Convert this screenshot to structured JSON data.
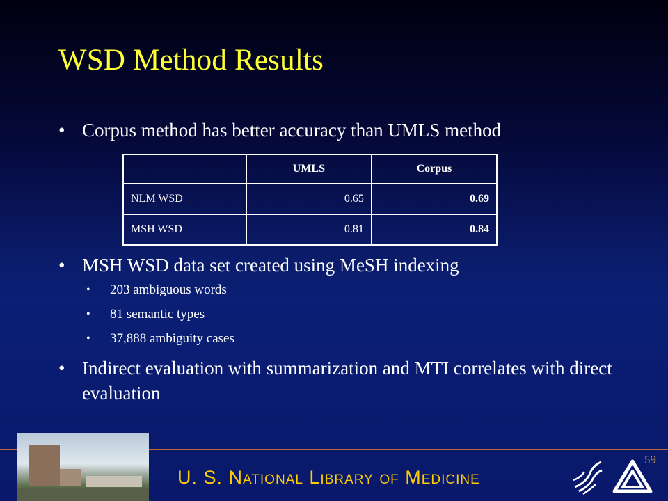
{
  "slide": {
    "title": "WSD Method Results",
    "page_number": "59"
  },
  "bullets": [
    {
      "marker": "•",
      "text": "Corpus method has better accuracy than UMLS method"
    },
    {
      "marker": "•",
      "text": "MSH WSD data set created using MeSH indexing"
    },
    {
      "marker": "•",
      "text": "Indirect evaluation with summarization and MTI correlates with direct evaluation"
    }
  ],
  "sub_bullets": [
    {
      "marker": "•",
      "text": "203 ambiguous words"
    },
    {
      "marker": "•",
      "text": "81 semantic types"
    },
    {
      "marker": "•",
      "text": "37,888 ambiguity cases"
    }
  ],
  "table": {
    "headers": [
      "",
      "UMLS",
      "Corpus"
    ],
    "rows": [
      [
        "NLM WSD",
        "0.65",
        "0.69"
      ],
      [
        "MSH WSD",
        "0.81",
        "0.84"
      ]
    ]
  },
  "footer": {
    "org_name": "U. S. National Library of Medicine",
    "colors": {
      "accent": "#ffcc00",
      "title": "#ffff33",
      "line": "#c46a3a"
    },
    "icons": [
      "building-photo",
      "hhs-eagle-icon",
      "nlm-logo-icon"
    ]
  }
}
